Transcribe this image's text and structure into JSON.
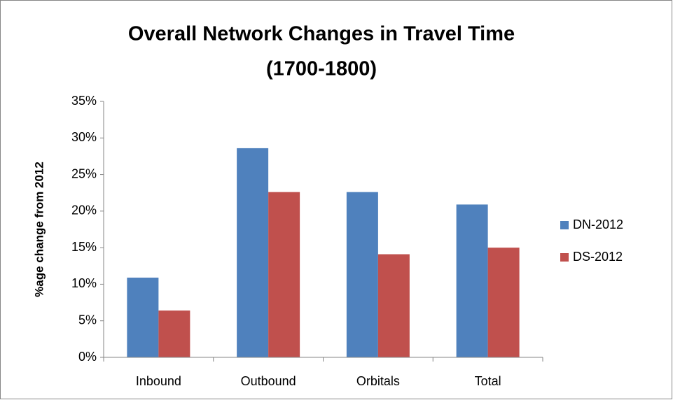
{
  "chart_data": {
    "type": "bar",
    "title": "Overall Network Changes in Travel Time",
    "subtitle": "(1700-1800)",
    "y_axis_label": "%age change from 2012",
    "categories": [
      "Inbound",
      "Outbound",
      "Orbitals",
      "Total"
    ],
    "series": [
      {
        "name": "DN-2012",
        "color": "#4f81bd",
        "values": [
          10.9,
          28.6,
          22.6,
          20.9
        ]
      },
      {
        "name": "DS-2012",
        "color": "#c0504d",
        "values": [
          6.4,
          22.6,
          14.1,
          15.0
        ]
      }
    ],
    "ylim": [
      0,
      35
    ],
    "yticks": [
      {
        "value": 0,
        "label": "0%"
      },
      {
        "value": 5,
        "label": "5%"
      },
      {
        "value": 10,
        "label": "10%"
      },
      {
        "value": 15,
        "label": "15%"
      },
      {
        "value": 20,
        "label": "20%"
      },
      {
        "value": 25,
        "label": "25%"
      },
      {
        "value": 30,
        "label": "30%"
      },
      {
        "value": 35,
        "label": "35%"
      }
    ],
    "grid": false,
    "legend": "right"
  }
}
